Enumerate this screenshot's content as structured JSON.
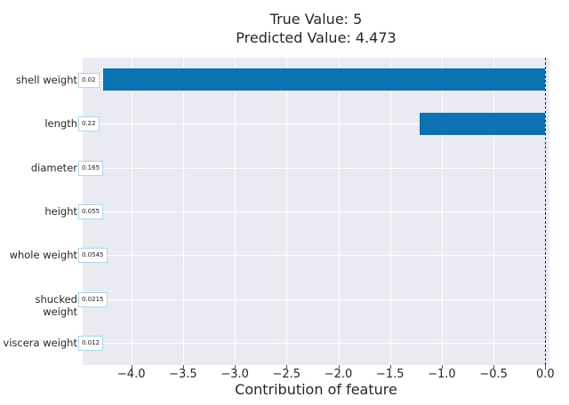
{
  "title": {
    "line1": "True Value: 5",
    "line2": "Predicted Value: 4.473"
  },
  "chart_data": {
    "type": "bar",
    "orientation": "horizontal",
    "title": "True Value: 5\nPredicted Value: 4.473",
    "xlabel": "Contribution of feature",
    "ylabel": "",
    "categories": [
      "shell weight",
      "length",
      "diameter",
      "height",
      "whole weight",
      "shucked weight",
      "viscera weight"
    ],
    "values": [
      -4.27,
      -1.21,
      0,
      0,
      0,
      0,
      0
    ],
    "annotations": [
      "0.02",
      "0.22",
      "0.165",
      "0.055",
      "0.0545",
      "0.0215",
      "0.012"
    ],
    "x_ticks": [
      -4.0,
      -3.5,
      -3.0,
      -2.5,
      -2.0,
      -1.5,
      -1.0,
      -0.5,
      0.0
    ],
    "x_tick_labels": [
      "−4.0",
      "−3.5",
      "−3.0",
      "−2.5",
      "−2.0",
      "−1.5",
      "−1.0",
      "−0.5",
      "0.0"
    ],
    "xlim": [
      -4.47,
      0.04
    ],
    "grid": true,
    "legend": false,
    "reference_line_x": 0,
    "colors": {
      "bar": "#0c72b2",
      "plot_bg": "#eaeaf2",
      "grid": "#ffffff",
      "annotation_border": "#add8e6",
      "annotation_bg": "#ffffff",
      "reference_line": "#222222",
      "text": "#262626"
    }
  }
}
